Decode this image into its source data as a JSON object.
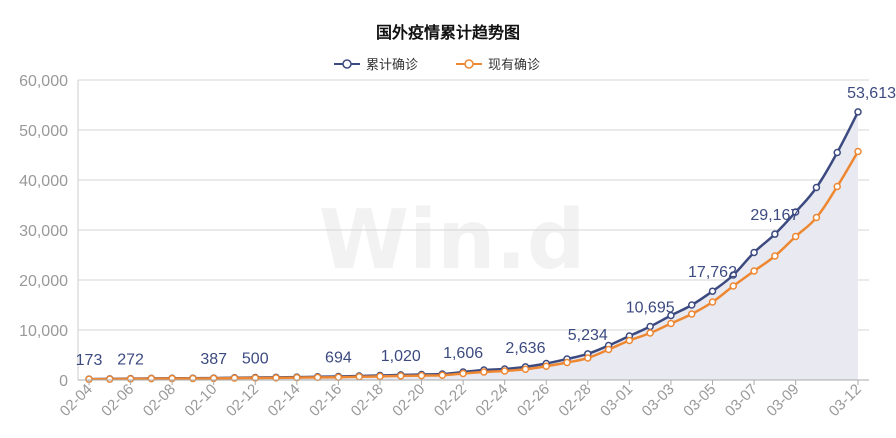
{
  "chart_data": {
    "type": "line",
    "title": "国外疫情累计趋势图",
    "watermark": "Win.d",
    "legend_position": "top-center",
    "ylim": [
      0,
      60000
    ],
    "yticks": [
      0,
      10000,
      20000,
      30000,
      40000,
      50000,
      60000
    ],
    "ytick_labels": [
      "0",
      "10,000",
      "20,000",
      "30,000",
      "40,000",
      "50,000",
      "60,000"
    ],
    "grid": true,
    "x": [
      "02-04",
      "02-05",
      "02-06",
      "02-07",
      "02-08",
      "02-09",
      "02-10",
      "02-11",
      "02-12",
      "02-13",
      "02-14",
      "02-15",
      "02-16",
      "02-17",
      "02-18",
      "02-19",
      "02-20",
      "02-21",
      "02-22",
      "02-23",
      "02-24",
      "02-25",
      "02-26",
      "02-27",
      "02-28",
      "02-29",
      "03-01",
      "03-02",
      "03-03",
      "03-04",
      "03-05",
      "03-06",
      "03-07",
      "03-08",
      "03-09",
      "03-10",
      "03-11",
      "03-12"
    ],
    "xtick_labels": [
      "02-04",
      "02-06",
      "02-08",
      "02-10",
      "02-12",
      "02-14",
      "02-16",
      "02-18",
      "02-20",
      "02-22",
      "02-24",
      "02-26",
      "02-28",
      "03-01",
      "03-03",
      "03-05",
      "03-07",
      "03-09",
      "03-12"
    ],
    "series": [
      {
        "name": "累计确诊",
        "color": "#3c4a80",
        "area": true,
        "area_color": "#e9eaf1",
        "values": [
          173,
          215,
          272,
          320,
          340,
          360,
          387,
          450,
          500,
          530,
          580,
          640,
          694,
          800,
          900,
          1020,
          1100,
          1200,
          1606,
          2000,
          2200,
          2636,
          3300,
          4200,
          5234,
          6900,
          8800,
          10695,
          12900,
          15000,
          17762,
          21000,
          25500,
          29167,
          33600,
          38500,
          45500,
          53613
        ],
        "data_labels": [
          {
            "x": "02-04",
            "label": "173"
          },
          {
            "x": "02-06",
            "label": "272"
          },
          {
            "x": "02-10",
            "label": "387"
          },
          {
            "x": "02-12",
            "label": "500"
          },
          {
            "x": "02-16",
            "label": "694"
          },
          {
            "x": "02-19",
            "label": "1,020"
          },
          {
            "x": "02-22",
            "label": "1,606"
          },
          {
            "x": "02-25",
            "label": "2,636"
          },
          {
            "x": "02-28",
            "label": "5,234"
          },
          {
            "x": "03-02",
            "label": "10,695"
          },
          {
            "x": "03-05",
            "label": "17,762"
          },
          {
            "x": "03-08",
            "label": "29,167"
          },
          {
            "x": "03-12",
            "label": "53,613"
          }
        ]
      },
      {
        "name": "现有确诊",
        "color": "#ee8732",
        "area": false,
        "values": [
          150,
          180,
          230,
          270,
          290,
          300,
          320,
          370,
          410,
          430,
          470,
          520,
          560,
          650,
          720,
          820,
          880,
          950,
          1300,
          1600,
          1800,
          2150,
          2750,
          3500,
          4400,
          6100,
          7900,
          9400,
          11300,
          13200,
          15600,
          18800,
          21800,
          24800,
          28700,
          32500,
          38700,
          45700
        ]
      }
    ]
  }
}
